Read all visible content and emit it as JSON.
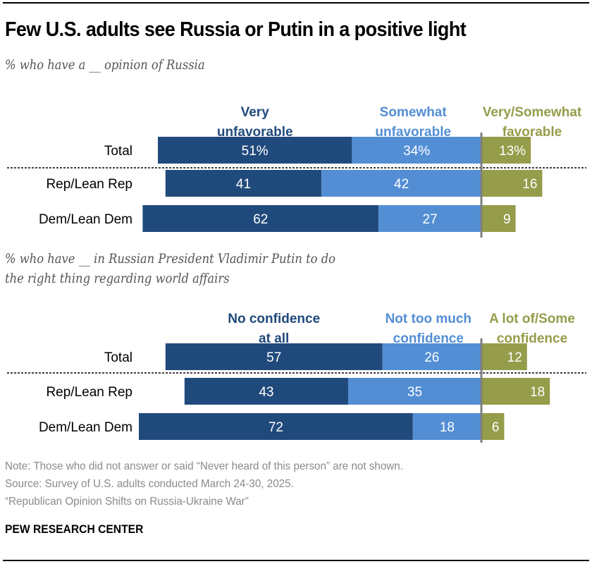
{
  "header": {
    "title": "Few U.S. adults see Russia or Putin in a positive light"
  },
  "colors": {
    "dark_blue": "#214a7c",
    "light_blue": "#538ed4",
    "olive": "#959c4a",
    "zero_line": "#808080"
  },
  "chart_data": [
    {
      "type": "bar",
      "orientation": "horizontal",
      "stacked": "diverging",
      "subtitle": "% who have a __ opinion of Russia",
      "categories": [
        "Total",
        "Rep/Lean Rep",
        "Dem/Lean Dem"
      ],
      "series": [
        {
          "name": "Very unfavorable",
          "side": "negative",
          "color": "#214a7c",
          "values": [
            51,
            41,
            62
          ],
          "labels": [
            "51%",
            "41",
            "62"
          ]
        },
        {
          "name": "Somewhat unfavorable",
          "side": "negative",
          "color": "#538ed4",
          "values": [
            34,
            42,
            27
          ],
          "labels": [
            "34%",
            "42",
            "27"
          ]
        },
        {
          "name": "Very/Somewhat favorable",
          "side": "positive",
          "color": "#959c4a",
          "values": [
            13,
            16,
            9
          ],
          "labels": [
            "13%",
            "16",
            "9"
          ]
        }
      ],
      "legend_labels": [
        [
          "Very",
          "unfavorable"
        ],
        [
          "Somewhat",
          "unfavorable"
        ],
        [
          "Very/Somewhat",
          "favorable"
        ]
      ],
      "separator_after_first_row": true,
      "unit": "%"
    },
    {
      "type": "bar",
      "orientation": "horizontal",
      "stacked": "diverging",
      "subtitle": "% who have __ in Russian President Vladimir Putin to do the right thing regarding world affairs",
      "subtitle_lines": [
        "% who have __ in Russian President Vladimir Putin to do",
        "the right thing regarding world affairs"
      ],
      "categories": [
        "Total",
        "Rep/Lean Rep",
        "Dem/Lean Dem"
      ],
      "series": [
        {
          "name": "No confidence at all",
          "side": "negative",
          "color": "#214a7c",
          "values": [
            57,
            43,
            72
          ],
          "labels": [
            "57",
            "43",
            "72"
          ]
        },
        {
          "name": "Not too much confidence",
          "side": "negative",
          "color": "#538ed4",
          "values": [
            26,
            35,
            18
          ],
          "labels": [
            "26",
            "35",
            "18"
          ]
        },
        {
          "name": "A lot of/Some confidence",
          "side": "positive",
          "color": "#959c4a",
          "values": [
            12,
            18,
            6
          ],
          "labels": [
            "12",
            "18",
            "6"
          ]
        }
      ],
      "legend_labels": [
        [
          "No confidence",
          "at all"
        ],
        [
          "Not too much",
          "confidence"
        ],
        [
          "A lot of/Some",
          "confidence"
        ]
      ],
      "separator_after_first_row": true,
      "unit": "%"
    }
  ],
  "footer": {
    "note": "Note: Those who did not answer or said “Never heard of this person” are not shown.",
    "source": "Source: Survey of U.S. adults conducted March 24-30, 2025.",
    "report": "“Republican Opinion Shifts on Russia-Ukraine War”",
    "brand": "PEW RESEARCH CENTER"
  }
}
